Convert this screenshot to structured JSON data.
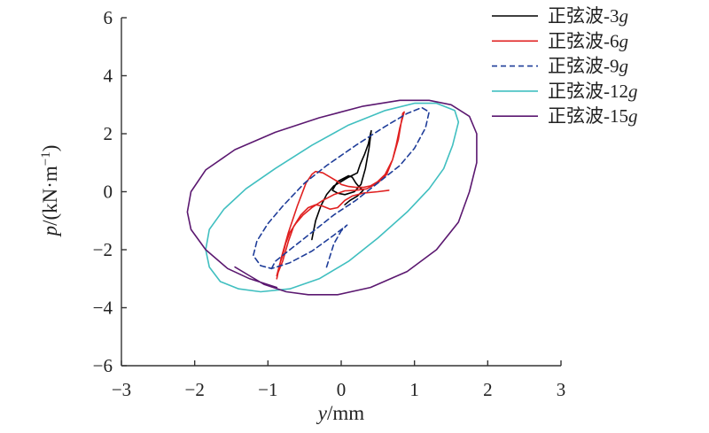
{
  "chart_data": {
    "type": "line",
    "xlabel": "y/mm",
    "ylabel": "p/(kN·m⁻¹)",
    "xlim": [
      -3,
      3
    ],
    "ylim": [
      -6,
      6
    ],
    "x_ticks": [
      -3,
      -2,
      -1,
      0,
      1,
      2,
      3
    ],
    "y_ticks": [
      -6,
      -4,
      -2,
      0,
      2,
      4,
      6
    ],
    "x_tick_labels": [
      "−3",
      "−2",
      "−1",
      "0",
      "1",
      "2",
      "3"
    ],
    "y_tick_labels": [
      "−6",
      "−4",
      "−2",
      "0",
      "2",
      "4",
      "6"
    ],
    "grid": false,
    "legend_position": "top-right",
    "series": [
      {
        "name": "正弦波-3g",
        "label_prefix": "正弦波-",
        "label_number": "3",
        "label_unit": "g",
        "color": "#000000",
        "dash": "",
        "points": [
          [
            -0.4,
            -1.65
          ],
          [
            -0.35,
            -1.0
          ],
          [
            -0.28,
            -0.5
          ],
          [
            -0.2,
            -0.1
          ],
          [
            -0.1,
            0.2
          ],
          [
            0.0,
            0.35
          ],
          [
            0.1,
            0.5
          ],
          [
            0.18,
            0.6
          ],
          [
            0.22,
            0.65
          ],
          [
            0.26,
            0.95
          ],
          [
            0.32,
            1.3
          ],
          [
            0.37,
            1.65
          ],
          [
            0.4,
            2.0
          ],
          [
            0.41,
            2.1
          ],
          [
            0.38,
            1.5
          ],
          [
            0.33,
            0.8
          ],
          [
            0.27,
            0.25
          ],
          [
            0.18,
            0.0
          ],
          [
            0.05,
            -0.1
          ],
          [
            -0.05,
            -0.05
          ],
          [
            -0.12,
            0.05
          ],
          [
            -0.05,
            0.35
          ],
          [
            0.1,
            0.55
          ],
          [
            0.15,
            0.5
          ],
          [
            0.2,
            0.3
          ],
          [
            0.25,
            0.15
          ],
          [
            0.3,
            0.05
          ],
          [
            0.22,
            -0.15
          ],
          [
            0.12,
            -0.3
          ],
          [
            0.05,
            -0.45
          ]
        ]
      },
      {
        "name": "正弦波-6g",
        "label_prefix": "正弦波-",
        "label_number": "6",
        "label_unit": "g",
        "color": "#e02020",
        "dash": "",
        "points": [
          [
            -0.88,
            -3.0
          ],
          [
            -0.82,
            -2.3
          ],
          [
            -0.72,
            -1.4
          ],
          [
            -0.6,
            -0.5
          ],
          [
            -0.48,
            0.3
          ],
          [
            -0.4,
            0.6
          ],
          [
            -0.35,
            0.7
          ],
          [
            -0.25,
            0.65
          ],
          [
            -0.15,
            0.5
          ],
          [
            -0.05,
            0.35
          ],
          [
            0.0,
            0.25
          ],
          [
            0.1,
            0.18
          ],
          [
            0.2,
            0.15
          ],
          [
            0.3,
            0.15
          ],
          [
            0.4,
            0.2
          ],
          [
            0.5,
            0.35
          ],
          [
            0.6,
            0.6
          ],
          [
            0.7,
            1.1
          ],
          [
            0.78,
            1.8
          ],
          [
            0.84,
            2.7
          ],
          [
            0.86,
            2.75
          ],
          [
            0.8,
            2.2
          ],
          [
            0.75,
            1.6
          ],
          [
            0.7,
            1.1
          ],
          [
            0.62,
            0.6
          ],
          [
            0.5,
            0.3
          ],
          [
            0.35,
            0.1
          ],
          [
            0.2,
            0.05
          ],
          [
            0.05,
            0.03
          ],
          [
            -0.1,
            -0.1
          ],
          [
            -0.25,
            -0.3
          ],
          [
            -0.4,
            -0.55
          ],
          [
            -0.52,
            -0.8
          ],
          [
            -0.62,
            -1.1
          ],
          [
            -0.7,
            -1.4
          ],
          [
            -0.76,
            -1.8
          ],
          [
            -0.8,
            -2.2
          ],
          [
            -0.84,
            -2.5
          ],
          [
            -0.88,
            -2.9
          ],
          [
            -0.8,
            -2.4
          ],
          [
            -0.72,
            -1.7
          ],
          [
            -0.65,
            -1.2
          ],
          [
            -0.55,
            -0.8
          ],
          [
            -0.45,
            -0.55
          ],
          [
            -0.35,
            -0.45
          ],
          [
            -0.25,
            -0.5
          ],
          [
            -0.15,
            -0.6
          ],
          [
            -0.05,
            -0.55
          ],
          [
            0.05,
            -0.3
          ],
          [
            0.15,
            -0.15
          ],
          [
            0.3,
            -0.05
          ],
          [
            0.5,
            0.0
          ],
          [
            0.65,
            0.05
          ]
        ]
      },
      {
        "name": "正弦波-9g",
        "label_prefix": "正弦波-",
        "label_number": "9",
        "label_unit": "g",
        "color": "#1f3d99",
        "dash": "6,4",
        "points": [
          [
            -0.2,
            -2.6
          ],
          [
            -0.1,
            -1.8
          ],
          [
            0.0,
            -1.35
          ],
          [
            0.08,
            -1.15
          ],
          [
            -0.1,
            -1.5
          ],
          [
            -0.4,
            -2.05
          ],
          [
            -0.7,
            -2.45
          ],
          [
            -0.95,
            -2.65
          ],
          [
            -1.1,
            -2.55
          ],
          [
            -1.2,
            -2.2
          ],
          [
            -1.15,
            -1.7
          ],
          [
            -1.0,
            -1.1
          ],
          [
            -0.8,
            -0.5
          ],
          [
            -0.5,
            0.3
          ],
          [
            -0.2,
            0.9
          ],
          [
            0.2,
            1.6
          ],
          [
            0.6,
            2.25
          ],
          [
            0.9,
            2.7
          ],
          [
            1.1,
            2.9
          ],
          [
            1.2,
            2.75
          ],
          [
            1.15,
            2.2
          ],
          [
            1.0,
            1.5
          ],
          [
            0.8,
            0.9
          ],
          [
            0.5,
            0.3
          ],
          [
            0.2,
            -0.3
          ],
          [
            -0.1,
            -0.8
          ],
          [
            -0.4,
            -1.4
          ],
          [
            -0.7,
            -2.0
          ],
          [
            -0.9,
            -2.4
          ],
          [
            -0.96,
            -2.7
          ]
        ]
      },
      {
        "name": "正弦波-12g",
        "label_prefix": "正弦波-",
        "label_number": "12",
        "label_unit": "g",
        "color": "#40bfc0",
        "dash": "",
        "points": [
          [
            1.6,
            2.4
          ],
          [
            1.52,
            1.6
          ],
          [
            1.4,
            0.8
          ],
          [
            1.2,
            0.1
          ],
          [
            0.9,
            -0.7
          ],
          [
            0.5,
            -1.6
          ],
          [
            0.1,
            -2.4
          ],
          [
            -0.3,
            -3.0
          ],
          [
            -0.7,
            -3.35
          ],
          [
            -1.1,
            -3.45
          ],
          [
            -1.4,
            -3.35
          ],
          [
            -1.65,
            -3.1
          ],
          [
            -1.8,
            -2.6
          ],
          [
            -1.85,
            -2.0
          ],
          [
            -1.8,
            -1.3
          ],
          [
            -1.6,
            -0.6
          ],
          [
            -1.3,
            0.1
          ],
          [
            -0.9,
            0.8
          ],
          [
            -0.4,
            1.6
          ],
          [
            0.1,
            2.3
          ],
          [
            0.6,
            2.8
          ],
          [
            1.0,
            3.05
          ],
          [
            1.3,
            3.05
          ],
          [
            1.55,
            2.8
          ],
          [
            1.6,
            2.4
          ]
        ]
      },
      {
        "name": "正弦波-15g",
        "label_prefix": "正弦波-",
        "label_number": "15",
        "label_unit": "g",
        "color": "#5b1870",
        "dash": "",
        "points": [
          [
            -1.45,
            -2.6
          ],
          [
            -1.25,
            -2.9
          ],
          [
            -1.05,
            -3.2
          ],
          [
            -0.75,
            -3.45
          ],
          [
            -0.45,
            -3.55
          ],
          [
            -0.05,
            -3.55
          ],
          [
            0.4,
            -3.3
          ],
          [
            0.9,
            -2.75
          ],
          [
            1.3,
            -2.0
          ],
          [
            1.6,
            -1.05
          ],
          [
            1.75,
            0.0
          ],
          [
            1.85,
            1.0
          ],
          [
            1.85,
            2.0
          ],
          [
            1.75,
            2.6
          ],
          [
            1.5,
            3.0
          ],
          [
            1.2,
            3.15
          ],
          [
            0.8,
            3.15
          ],
          [
            0.3,
            2.95
          ],
          [
            -0.3,
            2.55
          ],
          [
            -0.9,
            2.05
          ],
          [
            -1.45,
            1.45
          ],
          [
            -1.85,
            0.75
          ],
          [
            -2.05,
            0.0
          ],
          [
            -2.1,
            -0.7
          ],
          [
            -2.05,
            -1.3
          ],
          [
            -1.85,
            -2.0
          ],
          [
            -1.55,
            -2.65
          ],
          [
            -1.25,
            -3.0
          ],
          [
            -0.88,
            -3.3
          ]
        ]
      }
    ]
  }
}
